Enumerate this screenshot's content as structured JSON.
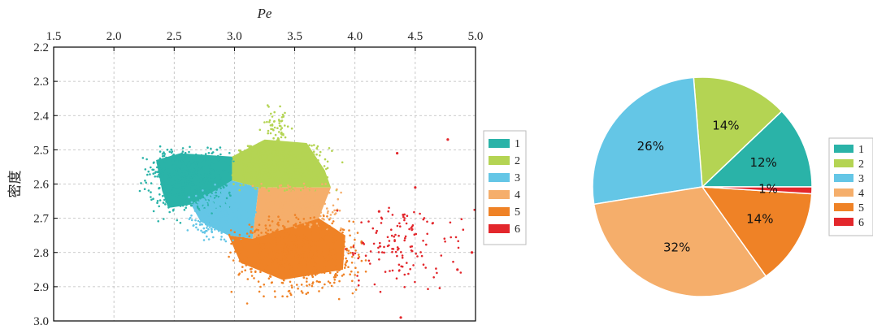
{
  "chart_data": [
    {
      "type": "scatter",
      "title": "",
      "xlabel": "Pe",
      "ylabel": "密度",
      "xlim": [
        1.5,
        5.0
      ],
      "ylim": [
        2.2,
        3.0
      ],
      "y_inverted": true,
      "x_axis_position": "top",
      "grid": true,
      "x_ticks": [
        "1.5",
        "2.0",
        "2.5",
        "3.0",
        "3.5",
        "4.0",
        "4.5",
        "5.0"
      ],
      "y_ticks": [
        "2.2",
        "2.3",
        "2.4",
        "2.5",
        "2.6",
        "2.7",
        "2.8",
        "2.9",
        "3.0"
      ],
      "legend_position": "right",
      "series": [
        {
          "name": "1",
          "color": "#2ab3a8",
          "x_range": [
            2.2,
            3.0
          ],
          "y_range": [
            2.49,
            2.72
          ],
          "points_approx": 900
        },
        {
          "name": "2",
          "color": "#b4d453",
          "x_range": [
            3.0,
            3.9
          ],
          "y_range": [
            2.35,
            2.62
          ],
          "points_approx": 900
        },
        {
          "name": "3",
          "color": "#64c6e6",
          "x_range": [
            2.6,
            3.2
          ],
          "y_range": [
            2.59,
            2.76
          ],
          "points_approx": 500
        },
        {
          "name": "4",
          "color": "#f5ae6b",
          "x_range": [
            3.15,
            3.85
          ],
          "y_range": [
            2.59,
            2.75
          ],
          "points_approx": 500
        },
        {
          "name": "5",
          "color": "#ef8226",
          "x_range": [
            2.95,
            4.1
          ],
          "y_range": [
            2.68,
            2.98
          ],
          "points_approx": 1200
        },
        {
          "name": "6",
          "color": "#e3272c",
          "x_range": [
            3.85,
            5.0
          ],
          "y_range": [
            2.47,
            2.99
          ],
          "points_approx": 200
        }
      ]
    },
    {
      "type": "pie",
      "title": "",
      "legend_position": "right",
      "categories": [
        "1",
        "2",
        "3",
        "4",
        "5",
        "6"
      ],
      "values": [
        12,
        14,
        26,
        32,
        14,
        1
      ],
      "labels": [
        "12%",
        "14%",
        "26%",
        "32%",
        "14%",
        "1%"
      ],
      "colors": [
        "#2ab3a8",
        "#b4d453",
        "#64c6e6",
        "#f5ae6b",
        "#ef8226",
        "#e3272c"
      ]
    }
  ]
}
